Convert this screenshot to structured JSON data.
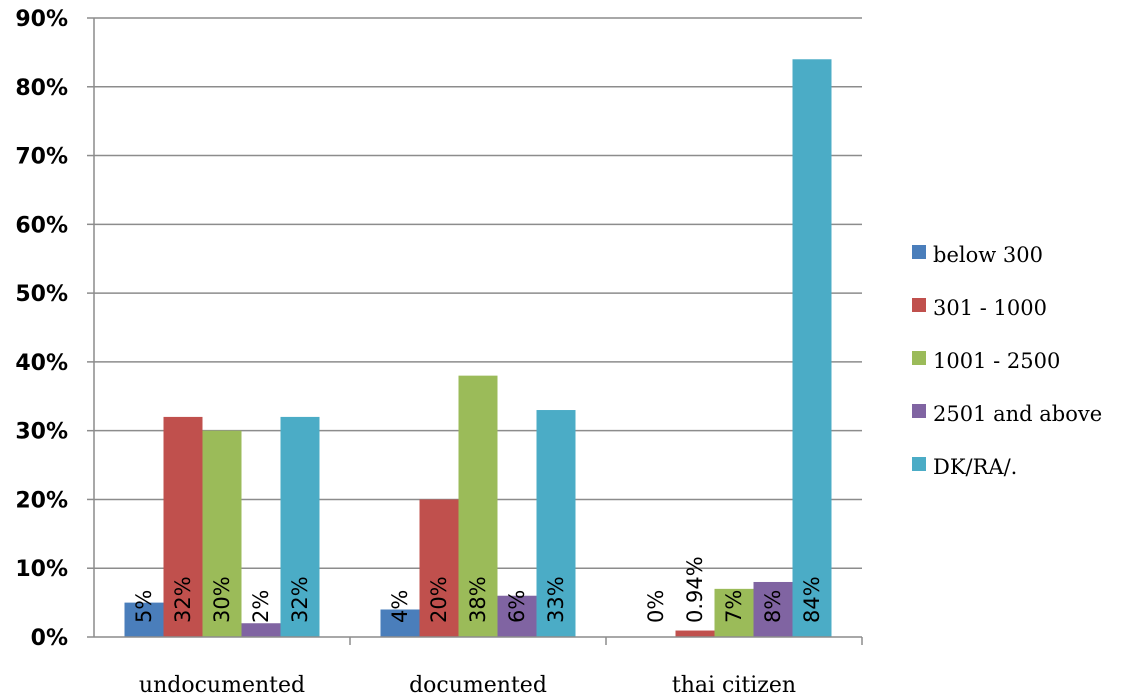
{
  "chart_data": {
    "type": "bar",
    "title": "",
    "xlabel": "",
    "ylabel": "",
    "ylim": [
      0,
      90
    ],
    "y_ticks": [
      "0%",
      "10%",
      "20%",
      "30%",
      "40%",
      "50%",
      "60%",
      "70%",
      "80%",
      "90%"
    ],
    "grid": true,
    "legend_position": "right",
    "categories": [
      "undocumented",
      "documented",
      "thai citizen"
    ],
    "series": [
      {
        "name": "below 300",
        "color": "#4a7ebb",
        "values": [
          5,
          4,
          0
        ],
        "labels": [
          "5%",
          "4%",
          "0%"
        ]
      },
      {
        "name": "301 - 1000",
        "color": "#c0504d",
        "values": [
          32,
          20,
          0.94
        ],
        "labels": [
          "32%",
          "20%",
          "0.94%"
        ]
      },
      {
        "name": "1001 - 2500",
        "color": "#9bbb59",
        "values": [
          30,
          38,
          7
        ],
        "labels": [
          "30%",
          "38%",
          "7%"
        ]
      },
      {
        "name": "2501 and above",
        "color": "#8064a2",
        "values": [
          2,
          6,
          8
        ],
        "labels": [
          "2%",
          "6%",
          "8%"
        ]
      },
      {
        "name": "DK/RA/.",
        "color": "#4bacc6",
        "values": [
          32,
          33,
          84
        ],
        "labels": [
          "32%",
          "33%",
          "84%"
        ]
      }
    ]
  }
}
